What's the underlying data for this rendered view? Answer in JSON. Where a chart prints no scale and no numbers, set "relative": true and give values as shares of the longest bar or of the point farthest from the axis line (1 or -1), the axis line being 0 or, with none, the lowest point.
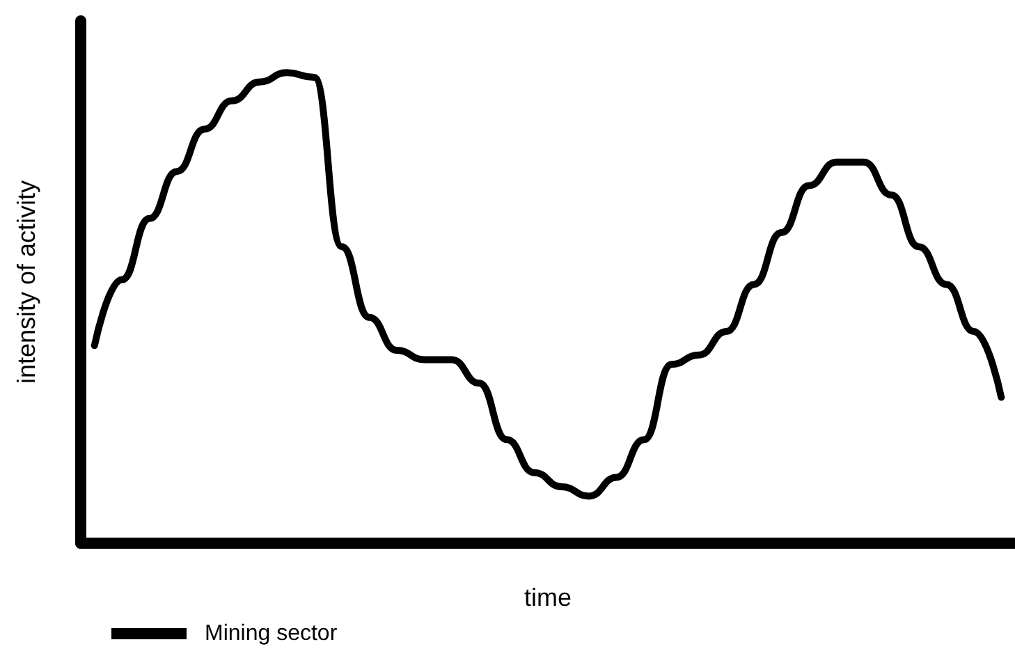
{
  "chart_data": {
    "type": "line",
    "relative": true,
    "xlabel": "time",
    "ylabel": "intensity of activity",
    "categories": [
      null,
      null,
      null,
      null,
      null,
      null,
      null,
      null,
      null,
      null,
      null,
      null,
      null,
      null,
      null,
      null,
      null,
      null,
      null,
      null,
      null,
      null,
      null,
      null,
      null,
      null,
      null,
      null,
      null,
      null,
      null,
      null,
      null,
      null
    ],
    "series": [
      {
        "name": "Mining sector",
        "color": "#000000",
        "values": [
          0.42,
          0.56,
          0.69,
          0.79,
          0.88,
          0.94,
          0.98,
          1,
          0.99,
          0.63,
          0.48,
          0.41,
          0.39,
          0.39,
          0.34,
          0.22,
          0.15,
          0.12,
          0.1,
          0.14,
          0.22,
          0.38,
          0.4,
          0.45,
          0.55,
          0.66,
          0.76,
          0.81,
          0.81,
          0.74,
          0.63,
          0.55,
          0.45,
          0.31
        ]
      }
    ],
    "legend": "bottom left",
    "marker": "none",
    "line_style": "solid",
    "grid": false
  }
}
